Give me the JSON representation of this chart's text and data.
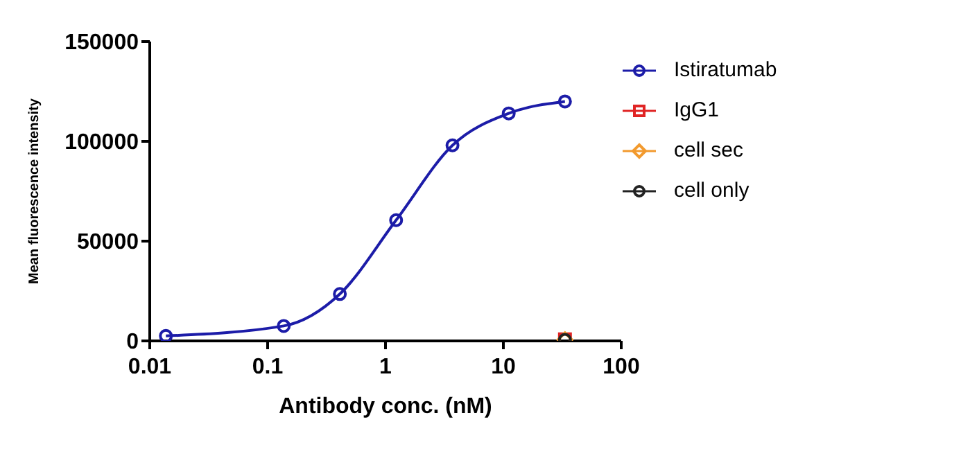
{
  "chart_data": {
    "type": "line",
    "xlabel": "Antibody conc. (nM)",
    "ylabel": "Mean fluorescence intensity",
    "log": "x",
    "xlim": [
      0.01,
      100
    ],
    "xticks": [
      0.01,
      0.1,
      1,
      10,
      100
    ],
    "ylim": [
      0,
      150000
    ],
    "yticks": [
      0,
      50000,
      100000,
      150000
    ],
    "grid": false,
    "legend": "right",
    "line_style": "solid",
    "series": [
      {
        "name": "Istiratumab",
        "color": "#1c1ca8",
        "marker": "circle",
        "x": [
          0.0137,
          0.137,
          0.41,
          1.23,
          3.7,
          11.1,
          33.3
        ],
        "values": [
          2500,
          7500,
          23500,
          60500,
          98000,
          114000,
          120000
        ]
      },
      {
        "name": "IgG1",
        "color": "#e02424",
        "marker": "square",
        "type": "scatter",
        "x": [
          33.3
        ],
        "values": [
          800
        ]
      },
      {
        "name": "cell sec",
        "color": "#f29a2e",
        "marker": "diamond",
        "type": "scatter",
        "x": [
          33.3
        ],
        "values": [
          600
        ]
      },
      {
        "name": "cell only",
        "color": "#222222",
        "marker": "circle",
        "type": "scatter",
        "x": [
          33.3
        ],
        "values": [
          500
        ]
      }
    ]
  }
}
